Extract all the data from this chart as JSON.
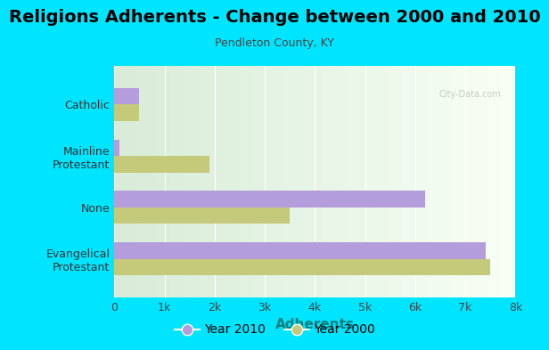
{
  "title": "Religions Adherents - Change between 2000 and 2010",
  "subtitle": "Pendleton County, KY",
  "xlabel": "Adherents",
  "categories": [
    "Evangelical\nProtestant",
    "None",
    "Mainline\nProtestant",
    "Catholic"
  ],
  "values_2010": [
    7400,
    6200,
    100,
    500
  ],
  "values_2000": [
    7500,
    3500,
    1900,
    500
  ],
  "color_2010": "#b39ddb",
  "color_2000": "#c5c97a",
  "background_outer": "#00e5ff",
  "xlim": [
    0,
    8000
  ],
  "xticks": [
    0,
    1000,
    2000,
    3000,
    4000,
    5000,
    6000,
    7000,
    8000
  ],
  "xticklabels": [
    "0",
    "1k",
    "2k",
    "3k",
    "4k",
    "5k",
    "6k",
    "7k",
    "8k"
  ],
  "bar_height": 0.32,
  "title_fontsize": 14,
  "subtitle_fontsize": 9,
  "xlabel_fontsize": 11,
  "tick_fontsize": 9,
  "legend_fontsize": 10,
  "xlabel_color": "#008080"
}
